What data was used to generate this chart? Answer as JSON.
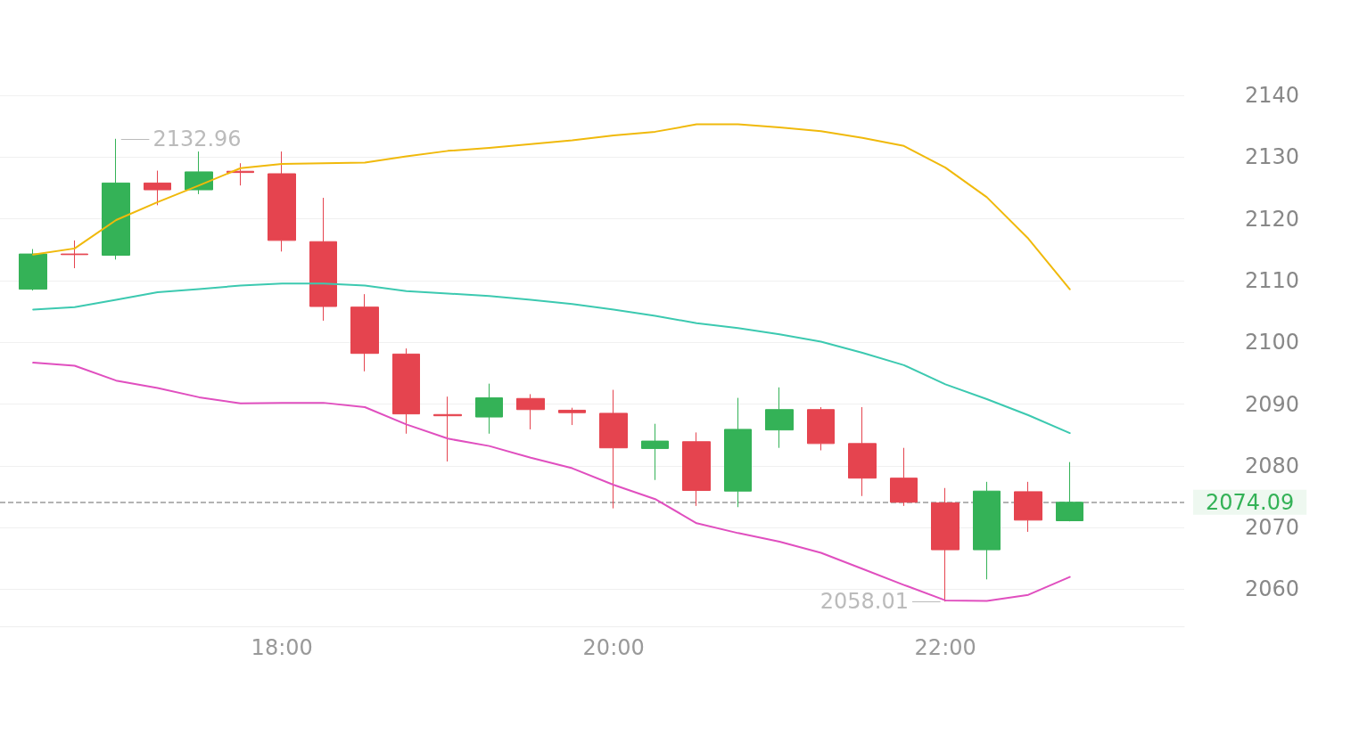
{
  "chart_data": {
    "type": "candlestick",
    "x": [
      16.5,
      16.75,
      17,
      17.25,
      17.5,
      17.75,
      18,
      18.25,
      18.5,
      18.75,
      19,
      19.25,
      19.5,
      19.75,
      20,
      20.25,
      20.5,
      20.75,
      21,
      21.25,
      21.5,
      21.75,
      22,
      22.25,
      22.5,
      22.75
    ],
    "ohlc": [
      [
        2108.6,
        2115.1,
        2108.4,
        2114.3
      ],
      [
        2114.3,
        2116.5,
        2112.0,
        2114.2
      ],
      [
        2114.1,
        2132.96,
        2113.4,
        2125.8
      ],
      [
        2125.8,
        2127.8,
        2122.2,
        2124.7
      ],
      [
        2124.7,
        2130.9,
        2124.0,
        2127.6
      ],
      [
        2127.7,
        2129.0,
        2125.4,
        2127.5
      ],
      [
        2127.3,
        2130.9,
        2114.7,
        2116.5
      ],
      [
        2116.3,
        2123.4,
        2103.5,
        2105.8
      ],
      [
        2105.7,
        2107.8,
        2095.3,
        2098.2
      ],
      [
        2098.1,
        2099.0,
        2085.2,
        2088.4
      ],
      [
        2088.3,
        2091.2,
        2080.7,
        2088.1
      ],
      [
        2087.9,
        2093.3,
        2085.2,
        2091.0
      ],
      [
        2090.9,
        2091.6,
        2085.9,
        2089.1
      ],
      [
        2089.0,
        2089.4,
        2086.6,
        2088.6
      ],
      [
        2088.5,
        2092.3,
        2073.1,
        2082.9
      ],
      [
        2082.8,
        2086.8,
        2077.7,
        2084.0
      ],
      [
        2083.9,
        2085.4,
        2073.5,
        2076.0
      ],
      [
        2075.9,
        2091.0,
        2073.3,
        2085.9
      ],
      [
        2085.8,
        2092.7,
        2082.9,
        2089.1
      ],
      [
        2089.1,
        2089.5,
        2082.5,
        2083.6
      ],
      [
        2083.6,
        2089.5,
        2075.1,
        2078.0
      ],
      [
        2078.0,
        2082.9,
        2073.5,
        2074.1
      ],
      [
        2074.0,
        2076.4,
        2058.01,
        2066.4
      ],
      [
        2066.4,
        2077.4,
        2061.6,
        2075.9
      ],
      [
        2075.8,
        2077.4,
        2069.3,
        2071.2
      ],
      [
        2071.1,
        2080.6,
        2071.0,
        2074.09
      ]
    ],
    "colors": [
      "#34b257",
      "#e5444f",
      "#34b257",
      "#e5444f",
      "#34b257",
      "#e5444f",
      "#e5444f",
      "#e5444f",
      "#e5444f",
      "#e5444f",
      "#e5444f",
      "#34b257",
      "#e5444f",
      "#e5444f",
      "#e5444f",
      "#34b257",
      "#e5444f",
      "#34b257",
      "#34b257",
      "#e5444f",
      "#e5444f",
      "#e5444f",
      "#e5444f",
      "#34b257",
      "#e5444f",
      "#34b257"
    ],
    "series": [
      {
        "type": "line",
        "color": "#f0b90b",
        "values": [
          2114.2,
          2115.2,
          2119.8,
          2122.7,
          2125.4,
          2128.2,
          2128.9,
          2129.0,
          2129.1,
          2130.1,
          2131.0,
          2131.5,
          2132.1,
          2132.7,
          2133.5,
          2134.1,
          2135.3,
          2135.3,
          2134.8,
          2134.2,
          2133.1,
          2131.8,
          2128.3,
          2123.5,
          2116.8,
          2108.6
        ]
      },
      {
        "type": "line",
        "color": "#3cc9b0",
        "values": [
          2105.3,
          2105.7,
          2106.9,
          2108.1,
          2108.6,
          2109.2,
          2109.5,
          2109.5,
          2109.2,
          2108.3,
          2107.9,
          2107.5,
          2106.9,
          2106.2,
          2105.3,
          2104.3,
          2103.1,
          2102.3,
          2101.3,
          2100.1,
          2098.3,
          2096.3,
          2093.2,
          2090.8,
          2088.2,
          2085.3
        ]
      },
      {
        "type": "line",
        "color": "#e04fbf",
        "values": [
          2096.7,
          2096.2,
          2093.8,
          2092.6,
          2091.1,
          2090.1,
          2090.2,
          2090.2,
          2089.5,
          2086.7,
          2084.4,
          2083.2,
          2081.3,
          2079.6,
          2076.9,
          2074.6,
          2070.7,
          2069.1,
          2067.7,
          2065.9,
          2063.3,
          2060.7,
          2058.2,
          2058.1,
          2059.1,
          2062.0
        ]
      }
    ],
    "xlim": [
      16.3,
      23.44
    ],
    "xticks": [
      {
        "value": 18,
        "label": "18:00"
      },
      {
        "value": 20,
        "label": "20:00"
      },
      {
        "value": 22,
        "label": "22:00"
      }
    ],
    "ylim": [
      2054,
      2140
    ],
    "yticks": [
      2060,
      2070,
      2080,
      2090,
      2100,
      2110,
      2120,
      2130,
      2140
    ],
    "ref_lines": [
      {
        "axis": "y",
        "value": 2074.09,
        "label": "2074.09",
        "color": "#9a9a9a",
        "line_style": "dashed"
      }
    ],
    "annotations": [
      {
        "text": "2132.96",
        "x": 17,
        "y": 2132.96
      },
      {
        "text": "2058.01",
        "x": 22,
        "y": 2058.01
      }
    ],
    "grid": "y",
    "marker": "none",
    "line_style": "solid"
  }
}
